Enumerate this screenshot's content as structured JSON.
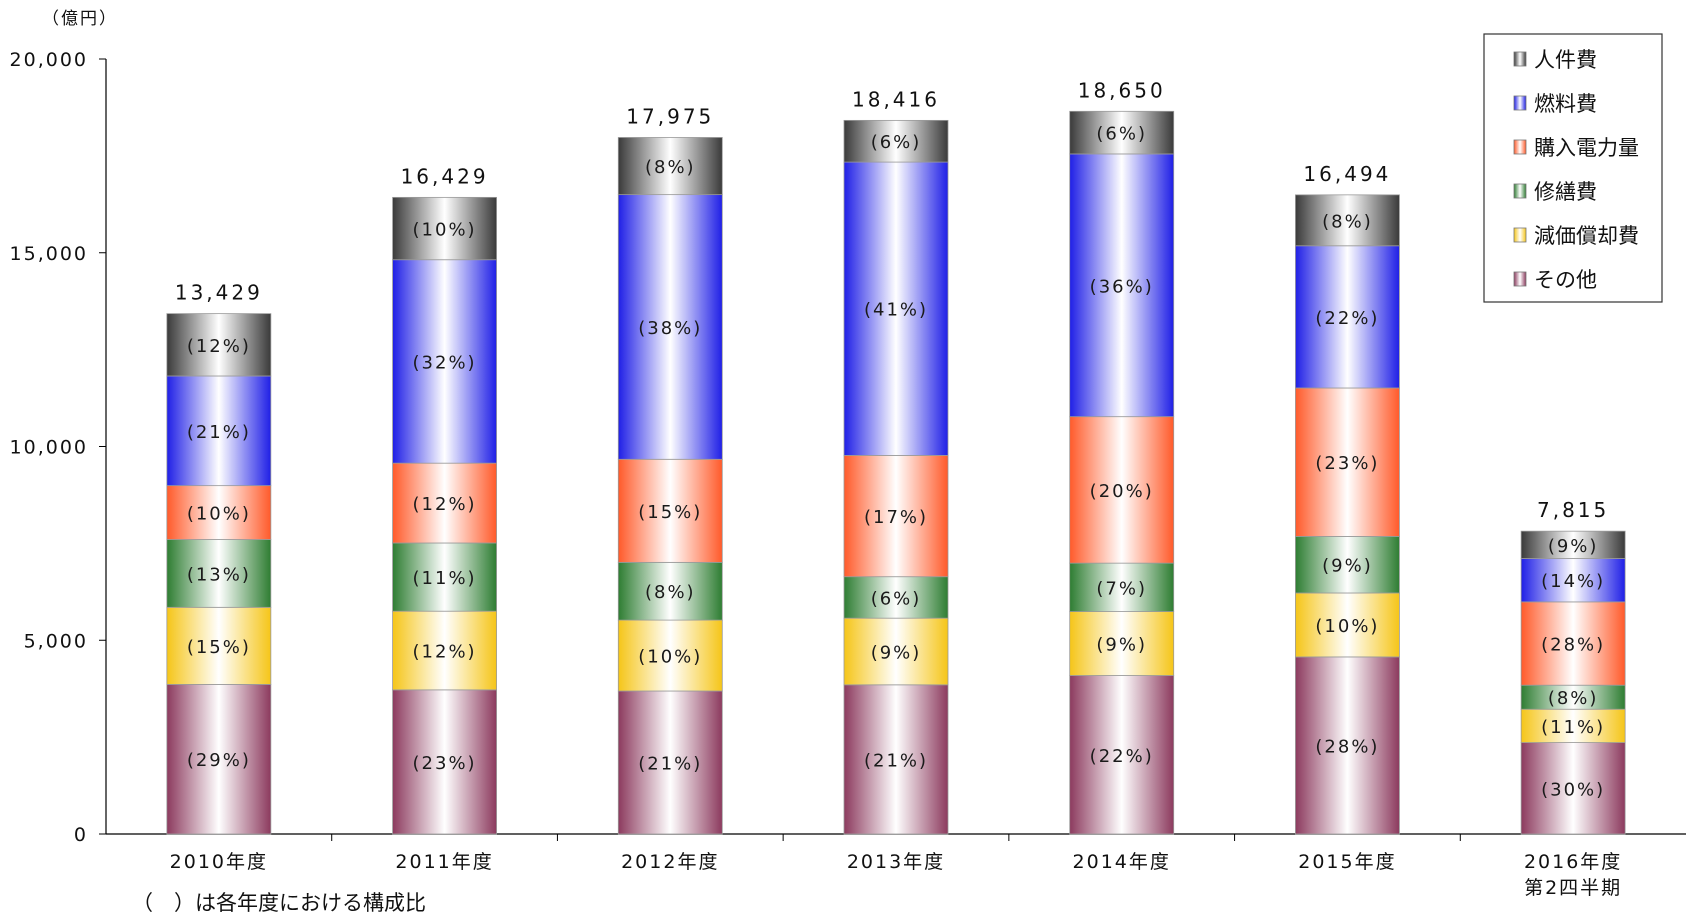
{
  "chart_data": {
    "type": "bar",
    "stacked": true,
    "unit_label": "（億円）",
    "note": "（　）は各年度における構成比",
    "ylim": [
      0,
      20000
    ],
    "yticks": [
      "0",
      "5,000",
      "10,000",
      "15,000",
      "20,000"
    ],
    "ytick_values": [
      0,
      5000,
      10000,
      15000,
      20000
    ],
    "categories": [
      {
        "line1": "2010年度",
        "line2": ""
      },
      {
        "line1": "2011年度",
        "line2": ""
      },
      {
        "line1": "2012年度",
        "line2": ""
      },
      {
        "line1": "2013年度",
        "line2": ""
      },
      {
        "line1": "2014年度",
        "line2": ""
      },
      {
        "line1": "2015年度",
        "line2": ""
      },
      {
        "line1": "2016年度",
        "line2": "第2四半期"
      }
    ],
    "totals": [
      13429,
      16429,
      17975,
      18416,
      18650,
      16494,
      7815
    ],
    "total_labels": [
      "13,429",
      "16,429",
      "17,975",
      "18,416",
      "18,650",
      "16,494",
      "7,815"
    ],
    "series": [
      {
        "name": "その他",
        "color": "#8c3a5e",
        "values": [
          3860,
          3720,
          3690,
          3850,
          4090,
          4570,
          2360
        ],
        "labels": [
          "(29%)",
          "(23%)",
          "(21%)",
          "(21%)",
          "(22%)",
          "(28%)",
          "(30%)"
        ]
      },
      {
        "name": "減価償却費",
        "color": "#f5c518",
        "values": [
          1990,
          2030,
          1830,
          1720,
          1650,
          1650,
          860
        ],
        "labels": [
          "(15%)",
          "(12%)",
          "(10%)",
          "(9%)",
          "(9%)",
          "(10%)",
          "(11%)"
        ]
      },
      {
        "name": "修繕費",
        "color": "#2e7d32",
        "values": [
          1750,
          1760,
          1490,
          1070,
          1250,
          1460,
          620
        ],
        "labels": [
          "(13%)",
          "(11%)",
          "(8%)",
          "(6%)",
          "(7%)",
          "(9%)",
          "(8%)"
        ]
      },
      {
        "name": "購入電力量",
        "color": "#ff5a2a",
        "values": [
          1390,
          2060,
          2660,
          3130,
          3780,
          3830,
          2150
        ],
        "labels": [
          "(10%)",
          "(12%)",
          "(15%)",
          "(17%)",
          "(20%)",
          "(23%)",
          "(28%)"
        ]
      },
      {
        "name": "燃料費",
        "color": "#1f1fe6",
        "values": [
          2830,
          5250,
          6830,
          7570,
          6780,
          3670,
          1120
        ],
        "labels": [
          "(21%)",
          "(32%)",
          "(38%)",
          "(41%)",
          "(36%)",
          "(22%)",
          "(14%)"
        ]
      },
      {
        "name": "人件費",
        "color": "#3a3a3a",
        "values": [
          1609,
          1609,
          1475,
          1076,
          1100,
          1314,
          705
        ],
        "labels": [
          "(12%)",
          "(10%)",
          "(8%)",
          "(6%)",
          "(6%)",
          "(8%)",
          "(9%)"
        ]
      }
    ],
    "legend": {
      "position": "top-right",
      "order": [
        "人件費",
        "燃料費",
        "購入電力量",
        "修繕費",
        "減価償却費",
        "その他"
      ]
    }
  }
}
